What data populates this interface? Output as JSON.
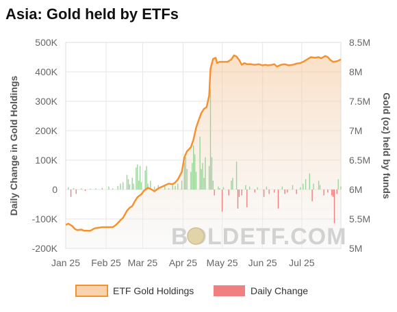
{
  "chart_data": {
    "type": "line",
    "title": "Asia: Gold held by ETFs",
    "ylabel_left": "Daily Change in Gold Holdings",
    "ylabel_right": "Gold (oz) held by funds",
    "x_ticks": [
      "Jan 25",
      "Feb 25",
      "Mar 25",
      "Apr 25",
      "May 25",
      "Jun 25",
      "Jul 25"
    ],
    "y_left_ticks": [
      "500K",
      "400K",
      "300K",
      "200K",
      "100K",
      "0",
      "-100K",
      "-200K"
    ],
    "y_right_ticks": [
      "8.5M",
      "8M",
      "7.5M",
      "7M",
      "6.5M",
      "6M",
      "5.5M",
      "5M"
    ],
    "y_left_range": [
      -200000,
      500000
    ],
    "y_right_range": [
      5000000,
      8500000
    ],
    "x_range": [
      "2025-01-01",
      "2025-07-31"
    ],
    "legend_position": "bottom",
    "grid": true,
    "watermark": "BOLDETF.COM",
    "series": [
      {
        "name": "ETF Gold Holdings",
        "axis": "right",
        "color": "#f5922f",
        "points": [
          [
            "2025-01-01",
            5.4
          ],
          [
            "2025-01-03",
            5.42
          ],
          [
            "2025-01-06",
            5.38
          ],
          [
            "2025-01-08",
            5.33
          ],
          [
            "2025-01-10",
            5.31
          ],
          [
            "2025-01-13",
            5.32
          ],
          [
            "2025-01-15",
            5.3
          ],
          [
            "2025-01-18",
            5.3
          ],
          [
            "2025-01-20",
            5.3
          ],
          [
            "2025-01-23",
            5.34
          ],
          [
            "2025-01-26",
            5.35
          ],
          [
            "2025-01-29",
            5.36
          ],
          [
            "2025-02-01",
            5.36
          ],
          [
            "2025-02-03",
            5.36
          ],
          [
            "2025-02-06",
            5.36
          ],
          [
            "2025-02-08",
            5.39
          ],
          [
            "2025-02-10",
            5.43
          ],
          [
            "2025-02-12",
            5.48
          ],
          [
            "2025-02-14",
            5.52
          ],
          [
            "2025-02-17",
            5.64
          ],
          [
            "2025-02-19",
            5.69
          ],
          [
            "2025-02-21",
            5.72
          ],
          [
            "2025-02-23",
            5.8
          ],
          [
            "2025-02-25",
            5.87
          ],
          [
            "2025-02-28",
            5.92
          ],
          [
            "2025-03-02",
            5.98
          ],
          [
            "2025-03-05",
            6.03
          ],
          [
            "2025-03-08",
            6.0
          ],
          [
            "2025-03-10",
            5.97
          ],
          [
            "2025-03-13",
            6.02
          ],
          [
            "2025-03-16",
            6.05
          ],
          [
            "2025-03-19",
            6.08
          ],
          [
            "2025-03-21",
            6.1
          ],
          [
            "2025-03-24",
            6.09
          ],
          [
            "2025-03-26",
            6.12
          ],
          [
            "2025-03-28",
            6.17
          ],
          [
            "2025-03-31",
            6.3
          ],
          [
            "2025-04-02",
            6.55
          ],
          [
            "2025-04-04",
            6.65
          ],
          [
            "2025-04-07",
            6.72
          ],
          [
            "2025-04-09",
            6.85
          ],
          [
            "2025-04-11",
            7.05
          ],
          [
            "2025-04-13",
            7.18
          ],
          [
            "2025-04-15",
            7.3
          ],
          [
            "2025-04-17",
            7.37
          ],
          [
            "2025-04-19",
            7.4
          ],
          [
            "2025-04-21",
            7.6
          ],
          [
            "2025-04-22",
            8.05
          ],
          [
            "2025-04-24",
            8.22
          ],
          [
            "2025-04-26",
            8.24
          ],
          [
            "2025-04-27",
            8.15
          ],
          [
            "2025-04-29",
            8.17
          ],
          [
            "2025-05-02",
            8.17
          ],
          [
            "2025-05-05",
            8.17
          ],
          [
            "2025-05-08",
            8.21
          ],
          [
            "2025-05-10",
            8.28
          ],
          [
            "2025-05-12",
            8.26
          ],
          [
            "2025-05-14",
            8.2
          ],
          [
            "2025-05-16",
            8.12
          ],
          [
            "2025-05-18",
            8.15
          ],
          [
            "2025-05-20",
            8.13
          ],
          [
            "2025-05-23",
            8.13
          ],
          [
            "2025-05-26",
            8.12
          ],
          [
            "2025-05-29",
            8.13
          ],
          [
            "2025-06-01",
            8.11
          ],
          [
            "2025-06-03",
            8.12
          ],
          [
            "2025-06-05",
            8.11
          ],
          [
            "2025-06-08",
            8.12
          ],
          [
            "2025-06-10",
            8.13
          ],
          [
            "2025-06-12",
            8.09
          ],
          [
            "2025-06-15",
            8.12
          ],
          [
            "2025-06-18",
            8.13
          ],
          [
            "2025-06-21",
            8.11
          ],
          [
            "2025-06-24",
            8.12
          ],
          [
            "2025-06-27",
            8.14
          ],
          [
            "2025-06-30",
            8.15
          ],
          [
            "2025-07-02",
            8.17
          ],
          [
            "2025-07-05",
            8.21
          ],
          [
            "2025-07-08",
            8.25
          ],
          [
            "2025-07-11",
            8.24
          ],
          [
            "2025-07-14",
            8.25
          ],
          [
            "2025-07-16",
            8.23
          ],
          [
            "2025-07-19",
            8.27
          ],
          [
            "2025-07-21",
            8.25
          ],
          [
            "2025-07-23",
            8.2
          ],
          [
            "2025-07-25",
            8.17
          ],
          [
            "2025-07-28",
            8.18
          ],
          [
            "2025-07-31",
            8.21
          ]
        ]
      },
      {
        "name": "Daily Change",
        "axis": "left",
        "positive_color": "#9bd49b",
        "negative_color": "#f08080",
        "points": [
          [
            "2025-01-03",
            8000
          ],
          [
            "2025-01-05",
            -25000
          ],
          [
            "2025-01-07",
            5000
          ],
          [
            "2025-01-09",
            -15000
          ],
          [
            "2025-01-13",
            4000
          ],
          [
            "2025-01-16",
            -5000
          ],
          [
            "2025-01-20",
            3000
          ],
          [
            "2025-01-24",
            4000
          ],
          [
            "2025-01-29",
            6000
          ],
          [
            "2025-02-03",
            10000
          ],
          [
            "2025-02-06",
            4000
          ],
          [
            "2025-02-10",
            12000
          ],
          [
            "2025-02-12",
            20000
          ],
          [
            "2025-02-14",
            25000
          ],
          [
            "2025-02-17",
            50000
          ],
          [
            "2025-02-18",
            35000
          ],
          [
            "2025-02-19",
            18000
          ],
          [
            "2025-02-21",
            40000
          ],
          [
            "2025-02-22",
            20000
          ],
          [
            "2025-02-24",
            75000
          ],
          [
            "2025-02-25",
            85000
          ],
          [
            "2025-02-26",
            30000
          ],
          [
            "2025-02-27",
            80000
          ],
          [
            "2025-02-28",
            25000
          ],
          [
            "2025-03-03",
            65000
          ],
          [
            "2025-03-04",
            80000
          ],
          [
            "2025-03-05",
            20000
          ],
          [
            "2025-03-07",
            30000
          ],
          [
            "2025-03-10",
            10000
          ],
          [
            "2025-03-13",
            15000
          ],
          [
            "2025-03-18",
            12000
          ],
          [
            "2025-03-21",
            5000
          ],
          [
            "2025-03-24",
            15000
          ],
          [
            "2025-03-26",
            12000
          ],
          [
            "2025-03-28",
            20000
          ],
          [
            "2025-03-31",
            30000
          ],
          [
            "2025-04-02",
            90000
          ],
          [
            "2025-04-03",
            110000
          ],
          [
            "2025-04-04",
            70000
          ],
          [
            "2025-04-07",
            60000
          ],
          [
            "2025-04-08",
            90000
          ],
          [
            "2025-04-09",
            150000
          ],
          [
            "2025-04-10",
            120000
          ],
          [
            "2025-04-11",
            60000
          ],
          [
            "2025-04-14",
            180000
          ],
          [
            "2025-04-15",
            70000
          ],
          [
            "2025-04-16",
            90000
          ],
          [
            "2025-04-17",
            40000
          ],
          [
            "2025-04-18",
            110000
          ],
          [
            "2025-04-21",
            80000
          ],
          [
            "2025-04-22",
            340000
          ],
          [
            "2025-04-23",
            110000
          ],
          [
            "2025-04-24",
            30000
          ],
          [
            "2025-04-25",
            -20000
          ],
          [
            "2025-04-28",
            10000
          ],
          [
            "2025-04-29",
            5000
          ],
          [
            "2025-05-01",
            -75000
          ],
          [
            "2025-05-02",
            8000
          ],
          [
            "2025-05-06",
            -20000
          ],
          [
            "2025-05-08",
            30000
          ],
          [
            "2025-05-09",
            40000
          ],
          [
            "2025-05-12",
            95000
          ],
          [
            "2025-05-13",
            -65000
          ],
          [
            "2025-05-14",
            -25000
          ],
          [
            "2025-05-16",
            -20000
          ],
          [
            "2025-05-19",
            15000
          ],
          [
            "2025-05-20",
            -60000
          ],
          [
            "2025-05-22",
            10000
          ],
          [
            "2025-05-26",
            -10000
          ],
          [
            "2025-05-28",
            8000
          ],
          [
            "2025-06-02",
            -25000
          ],
          [
            "2025-06-04",
            10000
          ],
          [
            "2025-06-06",
            -15000
          ],
          [
            "2025-06-10",
            -10000
          ],
          [
            "2025-06-13",
            -65000
          ],
          [
            "2025-06-16",
            10000
          ],
          [
            "2025-06-18",
            -15000
          ],
          [
            "2025-06-20",
            -10000
          ],
          [
            "2025-06-24",
            15000
          ],
          [
            "2025-06-27",
            -15000
          ],
          [
            "2025-06-30",
            8000
          ],
          [
            "2025-07-02",
            20000
          ],
          [
            "2025-07-04",
            35000
          ],
          [
            "2025-07-07",
            55000
          ],
          [
            "2025-07-09",
            -40000
          ],
          [
            "2025-07-10",
            20000
          ],
          [
            "2025-07-14",
            30000
          ],
          [
            "2025-07-15",
            15000
          ],
          [
            "2025-07-18",
            -20000
          ],
          [
            "2025-07-21",
            -10000
          ],
          [
            "2025-07-24",
            -20000
          ],
          [
            "2025-07-25",
            -25000
          ],
          [
            "2025-07-26",
            -115000
          ],
          [
            "2025-07-28",
            -15000
          ],
          [
            "2025-07-29",
            35000
          ],
          [
            "2025-07-31",
            10000
          ]
        ]
      }
    ]
  }
}
